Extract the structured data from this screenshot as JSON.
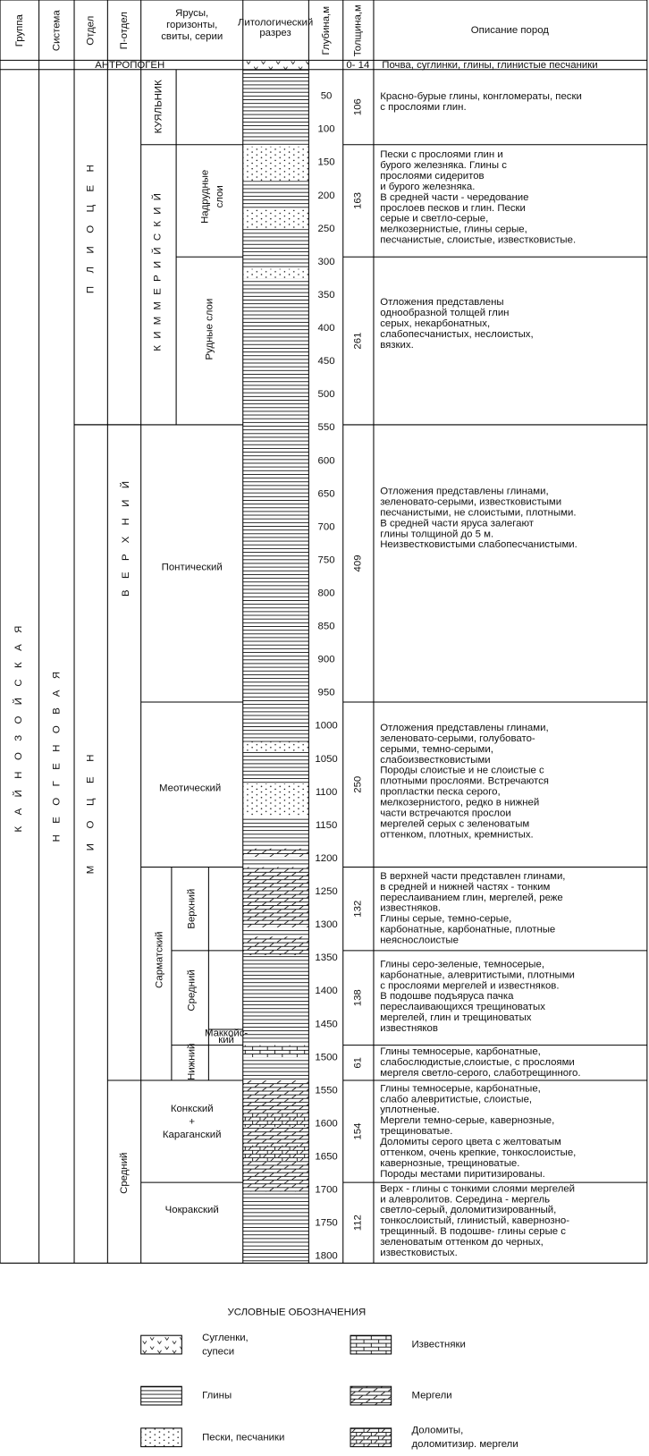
{
  "header": {
    "group": "Группа",
    "system": "Система",
    "division": "Отдел",
    "subdivision": "П-отдел",
    "stage": [
      "Ярусы,",
      "горизонты,",
      "свиты, серии"
    ],
    "lithology": [
      "Литологический",
      "разрез"
    ],
    "depth": "Глубина,м",
    "thickness": "Толщина,м",
    "description": "Описание пород"
  },
  "anthropogene": {
    "name": "АНТРОПОГЕН",
    "thickness": "0- 14",
    "description": "Почва, суглинки, глины, глинистые песчаники"
  },
  "group": "КАЙНОЗОЙСКАЯ",
  "system": "НЕОГЕНОВАЯ",
  "divisions": [
    "ПЛИОЦЕН",
    "МИОЦЕН"
  ],
  "subdivisions": [
    "ВЕРХНИЙ",
    "Средний"
  ],
  "superstages": {
    "kimmerian": "КИММЕРИЙСКИЙ",
    "sarmatian": "Сарматский",
    "makkoisky": [
      "Маккойс-",
      "кий"
    ]
  },
  "units": [
    {
      "name": [
        "КУЯЛЬНИК"
      ],
      "thickness": 106,
      "description": [
        "Красно-бурые глины, конгломераты, пески",
        "с прослоями глин."
      ]
    },
    {
      "name": [
        "Надрудные",
        "слои"
      ],
      "thickness": 163,
      "description": [
        "Пески с прослоями глин и",
        "бурого железняка. Глины с",
        "прослоями сидеритов",
        "и бурого железняка.",
        "В средней части - чередование",
        "прослоев песков и глин. Пески",
        "серые и светло-серые,",
        "мелкозернистые, глины серые,",
        "песчанистые, слоистые, известковистые."
      ]
    },
    {
      "name": [
        "Рудные  слои"
      ],
      "thickness": 261,
      "description": [
        "Отложения представлены",
        "однообразной толщей глин",
        "серых, некарбонатных,",
        "слабопесчанистых, неслоистых,",
        "вязких."
      ]
    },
    {
      "name": [
        "Понтический"
      ],
      "thickness": 409,
      "description": [
        "Отложения представлены глинами,",
        "зеленовато-серыми, известковистыми",
        "песчанистыми, не слоистыми, плотными.",
        "В средней части яруса залегают",
        "глины толщиной до 5 м.",
        "Неизвестковистыми слабопесчанистыми."
      ]
    },
    {
      "name": [
        "Меотический"
      ],
      "thickness": 250,
      "description": [
        "Отложения представлены глинами,",
        "зеленовато-серыми, голубовато-",
        "серыми, темно-серыми,",
        "слабоизвестковистыми",
        "Породы слоистые и не слоистые с",
        "плотными прослоями. Встречаются",
        "пропластки песка серого,",
        "мелкозернистого, редко в нижней",
        "части встречаются прослои",
        "мергелей серых с зеленоватым",
        "оттенком, плотных, кремнистых."
      ]
    },
    {
      "name": [
        "Верхний"
      ],
      "thickness": 132,
      "description": [
        "В верхней части представлен глинами,",
        "в средней и нижней частях - тонким",
        "переслаиванием глин, мергелей,  реже",
        "известняков.",
        "  Глины серые,  темно-серые,",
        "карбонатные, карбонатные, плотные",
        "неяснослоистые"
      ]
    },
    {
      "name": [
        "Средний"
      ],
      "thickness": 138,
      "description": [
        "Глины серо-зеленые,  темносерые,",
        "карбонатные, алевритистыми, плотными",
        "с прослоями мергелей и известняков.",
        "  В подошве подъяруса пачка",
        "переслаивающихся трещиноватых",
        "мергелей, глин и трещиноватых",
        "известняков"
      ]
    },
    {
      "name": [
        "Нижний"
      ],
      "thickness": 61,
      "description": [
        "Глины темносерые, карбонатные,",
        "слабослюдистые,слоистые, с прослоями",
        "мергеля светло-серого, слаботрещинного."
      ]
    },
    {
      "name": [
        "Конкский",
        "+",
        "Караганский"
      ],
      "thickness": 154,
      "description": [
        "Глины темносерые, карбонатные,",
        "слабо алевритистые, слоистые,",
        "уплотненые.",
        "Мергели темно-серые, кавернозные,",
        "трещиноватые.",
        "Доломиты серого цвета с желтоватым",
        "оттенком, очень крепкие, тонкослоистые,",
        "кавернозные, трещиноватые.",
        "Породы местами пиритизированы."
      ]
    },
    {
      "name": [
        "Чокракский"
      ],
      "thickness": 112,
      "description": [
        "Верх - глины с тонкими  слоями мергелей",
        "и алевролитов. Середина - мергель",
        "светло-серый, доломитизированный,",
        "тонкослоистый, глинистый, кавернозно-",
        "трещинный. В подошве- глины серые с",
        "зеленоватым оттенком до черных,",
        "известковистых."
      ]
    }
  ],
  "depth_scale": [
    50,
    100,
    150,
    200,
    250,
    300,
    350,
    400,
    450,
    500,
    550,
    600,
    650,
    700,
    750,
    800,
    850,
    900,
    950,
    1000,
    1050,
    1100,
    1150,
    1200,
    1250,
    1300,
    1350,
    1400,
    1450,
    1500,
    1550,
    1600,
    1650,
    1700,
    1750,
    1800
  ],
  "legend": {
    "title": "УСЛОВНЫЕ ОБОЗНАЧЕНИЯ",
    "items": [
      {
        "label": [
          "Сугленки,",
          "супеси"
        ]
      },
      {
        "label": [
          "Глины"
        ]
      },
      {
        "label": [
          "Пески, песчаники"
        ]
      },
      {
        "label": [
          "Известняки"
        ]
      },
      {
        "label": [
          "Мергели"
        ]
      },
      {
        "label": [
          "Доломиты,",
          "доломитизир. мергели"
        ]
      }
    ]
  }
}
